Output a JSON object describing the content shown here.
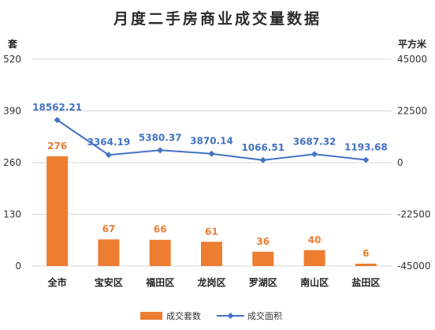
{
  "chart_data": {
    "type": "bar",
    "title": "月度二手房商业成交量数据",
    "y_left_label": "套",
    "y_right_label": "平方米",
    "y_left_ticks": [
      "520",
      "390",
      "260",
      "130",
      "0"
    ],
    "y_right_ticks": [
      "45000",
      "22500",
      "0",
      "-22500",
      "-45000"
    ],
    "y_left_range": [
      0,
      520
    ],
    "y_right_range": [
      -45000,
      45000
    ],
    "categories": [
      "全市",
      "宝安区",
      "福田区",
      "龙岗区",
      "罗湖区",
      "南山区",
      "盐田区"
    ],
    "series": [
      {
        "name": "成交套数",
        "type": "bar",
        "axis": "left",
        "color": "#ED7D31",
        "values": [
          276,
          67,
          66,
          61,
          36,
          40,
          6
        ],
        "labels": [
          "276",
          "67",
          "66",
          "61",
          "36",
          "40",
          "6"
        ]
      },
      {
        "name": "成交面积",
        "type": "line",
        "axis": "right",
        "color": "#4472C4",
        "values": [
          18562.21,
          3364.19,
          5380.37,
          3870.14,
          1066.51,
          3687.32,
          1193.68
        ],
        "labels": [
          "18562.21",
          "3364.19",
          "5380.37",
          "3870.14",
          "1066.51",
          "3687.32",
          "1193.68"
        ]
      }
    ],
    "grid": true,
    "legend_position": "bottom"
  }
}
